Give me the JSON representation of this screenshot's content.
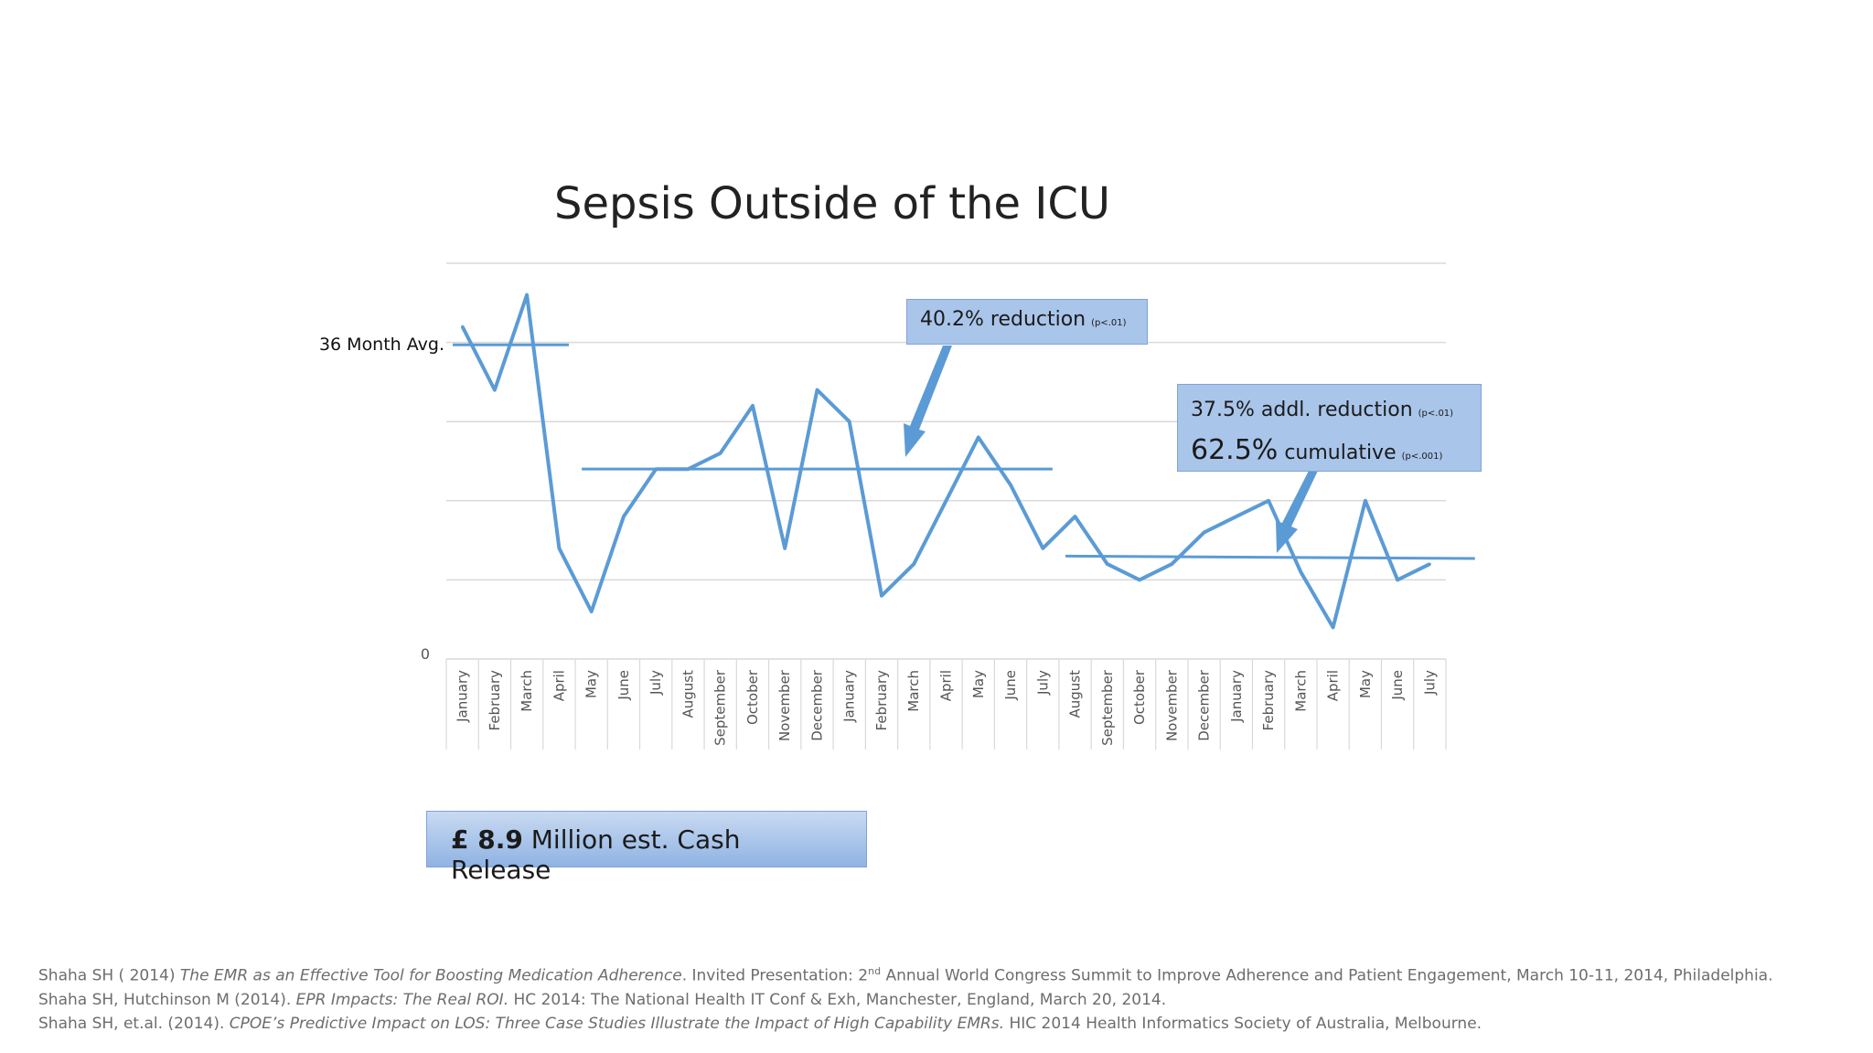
{
  "chart_data": {
    "type": "line",
    "title": "Sepsis Outside of the ICU",
    "categories": [
      "January",
      "February",
      "March",
      "April",
      "May",
      "June",
      "July",
      "August",
      "September",
      "October",
      "November",
      "December",
      "January",
      "February",
      "March",
      "April",
      "May",
      "June",
      "July",
      "August",
      "September",
      "October",
      "November",
      "December",
      "January",
      "February",
      "March",
      "April",
      "May",
      "June",
      "July"
    ],
    "series": [
      {
        "values": [
          4.2,
          3.4,
          4.6,
          1.4,
          0.6,
          1.8,
          2.4,
          2.4,
          2.6,
          3.2,
          1.4,
          3.4,
          3.0,
          0.8,
          1.2,
          2.0,
          2.8,
          2.2,
          1.4,
          1.8,
          1.2,
          1.0,
          1.2,
          1.6,
          1.8,
          2.0,
          1.1,
          0.4,
          2.0,
          1.0,
          1.2
        ]
      }
    ],
    "ylim": [
      0,
      5
    ],
    "ytick_labels": [
      {
        "value": 0,
        "label": "0"
      },
      {
        "value": 3.97,
        "label": "36 Month Avg."
      }
    ],
    "averages": [
      {
        "from": 0,
        "to": 3,
        "value": 3.97
      },
      {
        "from": 4,
        "to": 18,
        "value": 2.4
      },
      {
        "from": 19,
        "to": 30,
        "value": 1.3,
        "end_value": 1.27
      }
    ],
    "grid": true,
    "line_color": "#5b9bd5"
  },
  "callouts": {
    "first": {
      "text": "40.2% reduction",
      "p": "(p<.01)"
    },
    "second_line1": {
      "text": "37.5% addl. reduction",
      "p": "(p<.01)"
    },
    "second_line2": {
      "big": "62.5%",
      "text": "cumulative",
      "p": "(p<.001)"
    }
  },
  "cash": {
    "amount": "£ 8.9",
    "text": "Million est. Cash Release"
  },
  "references": [
    {
      "pre": "Shaha SH ( 2014) ",
      "title": "The EMR as an Effective Tool for Boosting Medication Adherence",
      "post_a": ".  Invited Presentation:  2",
      "sup": "nd",
      "post_b": " Annual World Congress Summit to Improve Adherence and Patient Engagement, March 10-11, 2014, Philadelphia."
    },
    {
      "pre": "Shaha SH, Hutchinson M (2014).  ",
      "title": "EPR Impacts: The Real ROI.",
      "post": "  HC 2014: The National Health IT Conf & Exh, Manchester, England, March 20, 2014."
    },
    {
      "pre": "Shaha SH, et.al. (2014). ",
      "title": "CPOE’s Predictive Impact on LOS:  Three Case Studies Illustrate the Impact of High Capability EMRs.",
      "post": "  HIC 2014 Health Informatics Society of Australia, Melbourne."
    }
  ]
}
